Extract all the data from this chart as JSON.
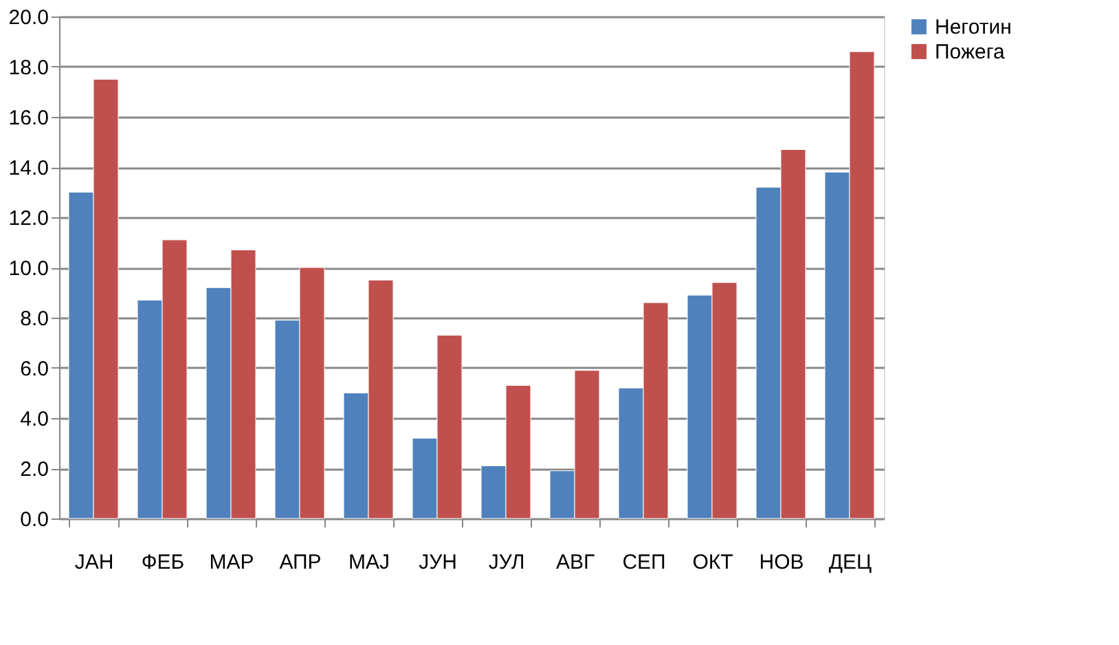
{
  "chart_data": {
    "type": "bar",
    "categories": [
      "ЈАН",
      "ФЕБ",
      "МАР",
      "АПР",
      "МАЈ",
      "ЈУН",
      "ЈУЛ",
      "АВГ",
      "СЕП",
      "ОКТ",
      "НОВ",
      "ДЕЦ"
    ],
    "series": [
      {
        "name": "Неготин",
        "color": "#4f81bd",
        "values": [
          13.0,
          8.7,
          9.2,
          7.9,
          5.0,
          3.2,
          2.1,
          1.9,
          5.2,
          8.9,
          13.2,
          13.8
        ]
      },
      {
        "name": "Пожега",
        "color": "#c0504d",
        "values": [
          17.5,
          11.1,
          10.7,
          10.0,
          9.5,
          7.3,
          5.3,
          5.9,
          8.6,
          9.4,
          14.7,
          18.6
        ]
      }
    ],
    "ylim": [
      0,
      20
    ],
    "yticks": [
      {
        "value": 0,
        "label": "0.0"
      },
      {
        "value": 2,
        "label": "2.0"
      },
      {
        "value": 4,
        "label": "4.0"
      },
      {
        "value": 6,
        "label": "6.0"
      },
      {
        "value": 8,
        "label": "8.0"
      },
      {
        "value": 10,
        "label": "10.0"
      },
      {
        "value": 12,
        "label": "12.0"
      },
      {
        "value": 14,
        "label": "14.0"
      },
      {
        "value": 16,
        "label": "16.0"
      },
      {
        "value": 18,
        "label": "18.0"
      },
      {
        "value": 20,
        "label": "20.0"
      }
    ],
    "grid": "y",
    "legend": "right"
  }
}
